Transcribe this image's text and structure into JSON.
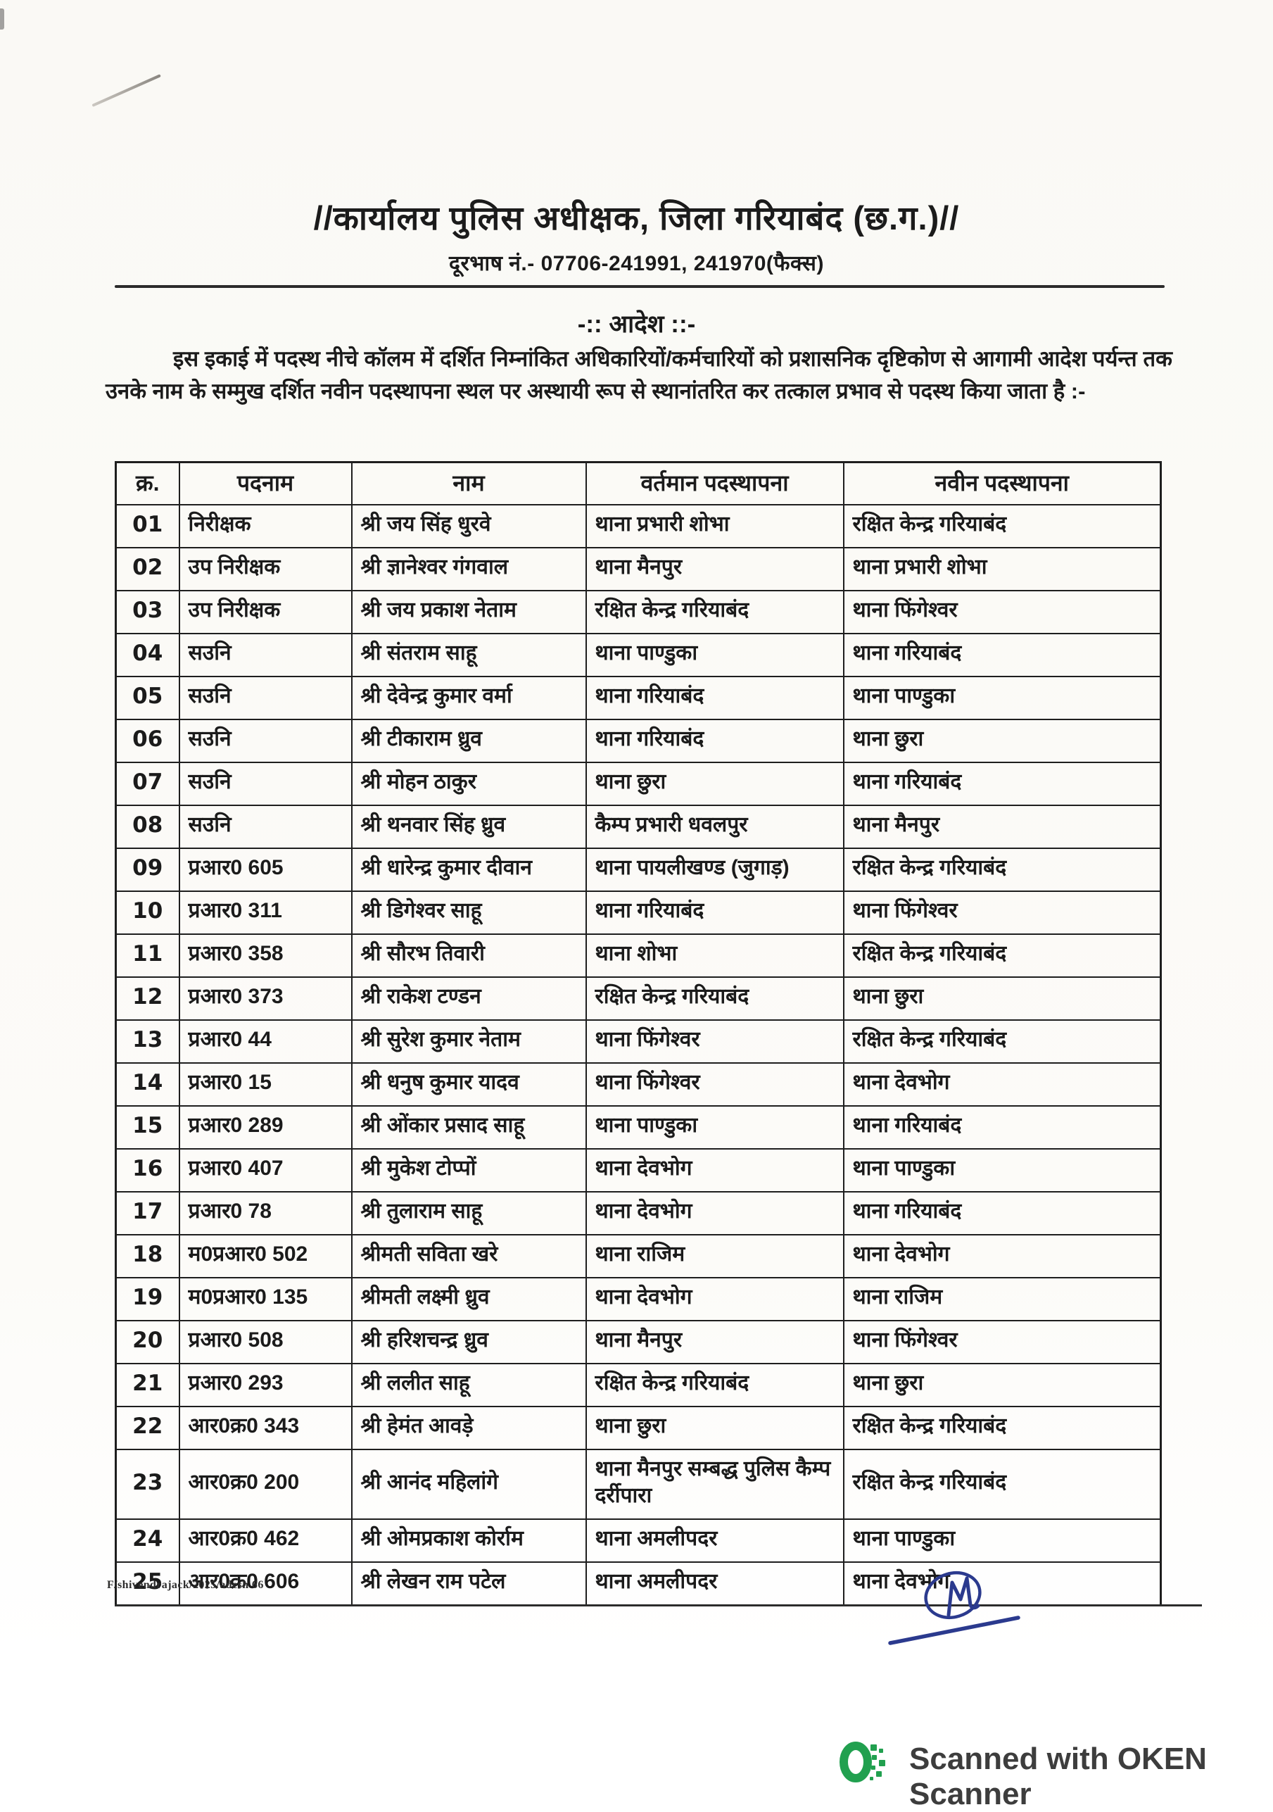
{
  "document": {
    "title": "//कार्यालय पुलिस अधीक्षक, जिला गरियाबंद (छ.ग.)//",
    "phone_line": "दूरभाष नं.- 07706-241991, 241970(फैक्स)",
    "order_heading": "-:: आदेश ::-",
    "intro_paragraph": "इस इकाई में पदस्थ नीचे कॉलम में दर्शित निम्नांकित अधिकारियों/कर्मचारियों को प्रशासनिक दृष्टिकोण से आगामी आदेश पर्यन्त तक उनके नाम के सम्मुख दर्शित नवीन पदस्थापना स्थल पर अस्थायी रूप से स्थानांतरित कर तत्काल प्रभाव से पदस्थ किया जाता है :-",
    "file_reference": "F/shivendrajack/2025/adesh 66"
  },
  "table": {
    "headers": [
      "क्र.",
      "पदनाम",
      "नाम",
      "वर्तमान पदस्थापना",
      "नवीन पदस्थापना"
    ],
    "rows": [
      {
        "sn": "01",
        "designation": "निरीक्षक",
        "name": "श्री जय सिंह धुरवे",
        "current_posting": "थाना प्रभारी शोभा",
        "new_posting": "रक्षित केन्द्र गरियाबंद"
      },
      {
        "sn": "02",
        "designation": "उप निरीक्षक",
        "name": "श्री ज्ञानेश्वर गंगवाल",
        "current_posting": "थाना मैनपुर",
        "new_posting": "थाना प्रभारी शोभा"
      },
      {
        "sn": "03",
        "designation": "उप निरीक्षक",
        "name": "श्री जय प्रकाश नेताम",
        "current_posting": "रक्षित केन्द्र गरियाबंद",
        "new_posting": "थाना फिंगेश्वर"
      },
      {
        "sn": "04",
        "designation": "सउनि",
        "name": "श्री संतराम साहू",
        "current_posting": "थाना पाण्डुका",
        "new_posting": "थाना गरियाबंद"
      },
      {
        "sn": "05",
        "designation": "सउनि",
        "name": "श्री देवेन्द्र कुमार वर्मा",
        "current_posting": "थाना गरियाबंद",
        "new_posting": "थाना पाण्डुका"
      },
      {
        "sn": "06",
        "designation": "सउनि",
        "name": "श्री टीकाराम ध्रुव",
        "current_posting": "थाना गरियाबंद",
        "new_posting": "थाना छुरा"
      },
      {
        "sn": "07",
        "designation": "सउनि",
        "name": "श्री मोहन ठाकुर",
        "current_posting": "थाना छुरा",
        "new_posting": "थाना गरियाबंद"
      },
      {
        "sn": "08",
        "designation": "सउनि",
        "name": "श्री थनवार सिंह ध्रुव",
        "current_posting": "कैम्प प्रभारी धवलपुर",
        "new_posting": "थाना मैनपुर"
      },
      {
        "sn": "09",
        "designation": "प्रआर0 605",
        "name": "श्री धारेन्द्र कुमार दीवान",
        "current_posting": "थाना पायलीखण्ड (जुगाड़)",
        "new_posting": "रक्षित केन्द्र गरियाबंद"
      },
      {
        "sn": "10",
        "designation": "प्रआर0 311",
        "name": "श्री डिगेश्वर साहू",
        "current_posting": "थाना गरियाबंद",
        "new_posting": "थाना फिंगेश्वर"
      },
      {
        "sn": "11",
        "designation": "प्रआर0 358",
        "name": "श्री सौरभ तिवारी",
        "current_posting": "थाना शोभा",
        "new_posting": "रक्षित केन्द्र गरियाबंद"
      },
      {
        "sn": "12",
        "designation": "प्रआर0 373",
        "name": "श्री राकेश टण्डन",
        "current_posting": "रक्षित केन्द्र गरियाबंद",
        "new_posting": "थाना छुरा"
      },
      {
        "sn": "13",
        "designation": "प्रआर0 44",
        "name": "श्री सुरेश कुमार नेताम",
        "current_posting": "थाना फिंगेश्वर",
        "new_posting": "रक्षित केन्द्र गरियाबंद"
      },
      {
        "sn": "14",
        "designation": "प्रआर0 15",
        "name": "श्री धनुष कुमार यादव",
        "current_posting": "थाना फिंगेश्वर",
        "new_posting": "थाना देवभोग"
      },
      {
        "sn": "15",
        "designation": "प्रआर0 289",
        "name": "श्री ओंकार प्रसाद साहू",
        "current_posting": "थाना पाण्डुका",
        "new_posting": "थाना गरियाबंद"
      },
      {
        "sn": "16",
        "designation": "प्रआर0 407",
        "name": "श्री मुकेश टोप्पों",
        "current_posting": "थाना देवभोग",
        "new_posting": "थाना पाण्डुका"
      },
      {
        "sn": "17",
        "designation": "प्रआर0 78",
        "name": "श्री तुलाराम साहू",
        "current_posting": "थाना देवभोग",
        "new_posting": "थाना गरियाबंद"
      },
      {
        "sn": "18",
        "designation": "म0प्रआर0 502",
        "name": "श्रीमती सविता खरे",
        "current_posting": "थाना राजिम",
        "new_posting": "थाना देवभोग"
      },
      {
        "sn": "19",
        "designation": "म0प्रआर0 135",
        "name": "श्रीमती लक्ष्मी ध्रुव",
        "current_posting": "थाना देवभोग",
        "new_posting": "थाना राजिम"
      },
      {
        "sn": "20",
        "designation": "प्रआर0 508",
        "name": "श्री हरिशचन्द्र ध्रुव",
        "current_posting": "थाना मैनपुर",
        "new_posting": "थाना फिंगेश्वर"
      },
      {
        "sn": "21",
        "designation": "प्रआर0 293",
        "name": "श्री ललीत साहू",
        "current_posting": "रक्षित केन्द्र गरियाबंद",
        "new_posting": "थाना छुरा"
      },
      {
        "sn": "22",
        "designation": "आर0क्र0 343",
        "name": "श्री हेमंत आवड़े",
        "current_posting": "थाना छुरा",
        "new_posting": "रक्षित केन्द्र गरियाबंद"
      },
      {
        "sn": "23",
        "designation": "आर0क्र0 200",
        "name": "श्री आनंद महिलांगे",
        "current_posting": "थाना मैनपुर सम्बद्ध पुलिस कैम्प दर्रीपारा",
        "new_posting": "रक्षित केन्द्र गरियाबंद"
      },
      {
        "sn": "24",
        "designation": "आर0क्र0 462",
        "name": "श्री ओमप्रकाश कोर्राम",
        "current_posting": "थाना अमलीपदर",
        "new_posting": "थाना पाण्डुका"
      },
      {
        "sn": "25",
        "designation": "आर0क्र0 606",
        "name": "श्री लेखन राम पटेल",
        "current_posting": "थाना अमलीपदर",
        "new_posting": "थाना देवभोग"
      }
    ]
  },
  "signature": {
    "ink_color": "#2b3a8e"
  },
  "scanner_footer": {
    "label": "Scanned with OKEN Scanner",
    "logo_color": "#21a04f"
  }
}
